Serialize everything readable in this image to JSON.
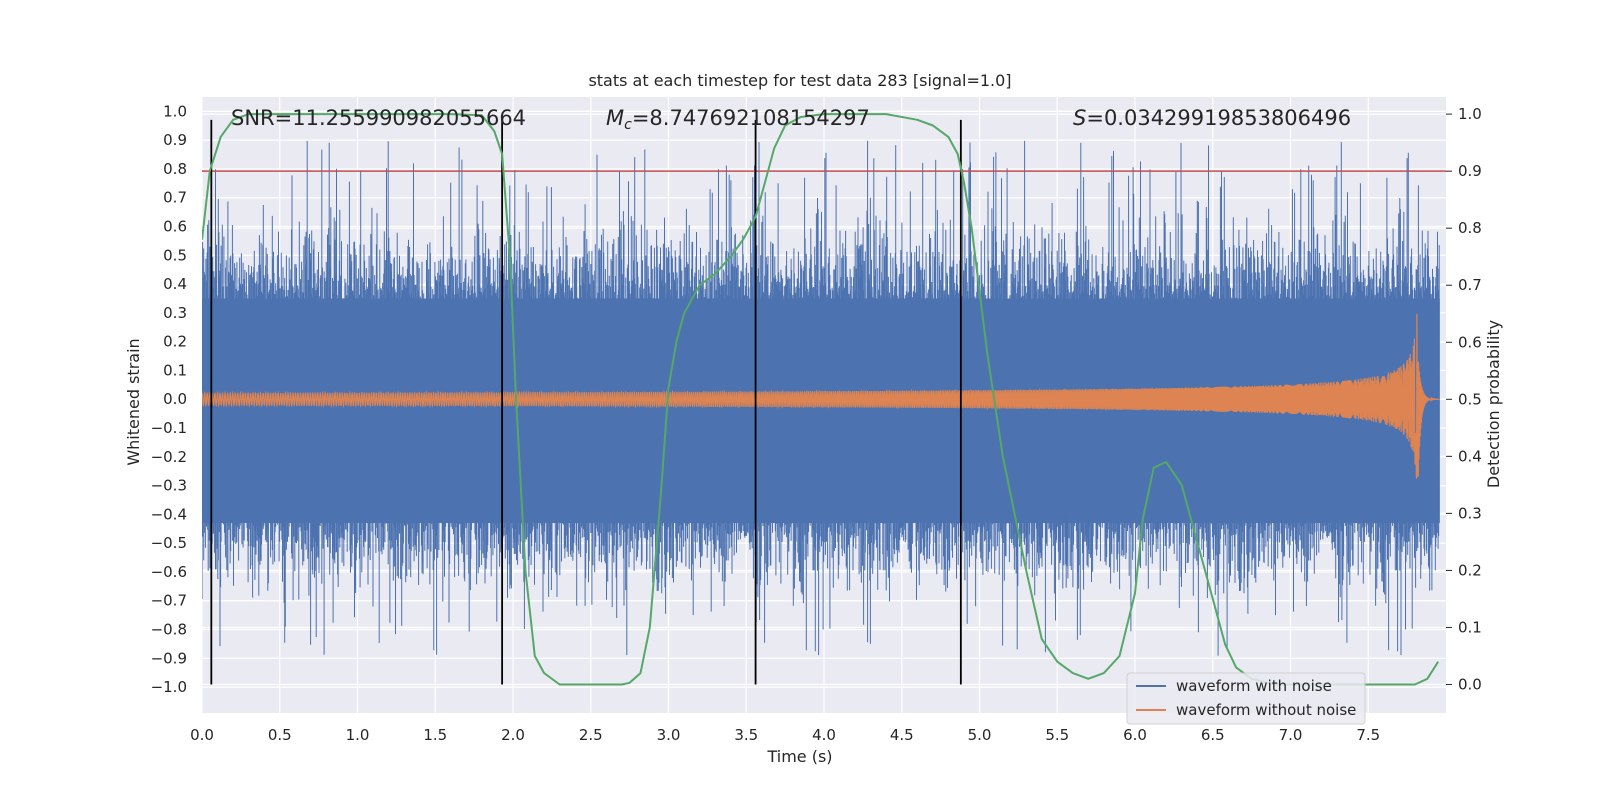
{
  "chart_data": {
    "type": "line",
    "title": "stats at each timestep for test data 283 [signal=1.0]",
    "xlabel": "Time (s)",
    "ylabel_left": "Whitened strain",
    "ylabel_right": "Detection probability",
    "xlim": [
      0.0,
      8.0
    ],
    "ylim_left": [
      -1.09,
      1.05
    ],
    "ylim_right": [
      -0.05,
      1.03
    ],
    "x_ticks": [
      "0.0",
      "0.5",
      "1.0",
      "1.5",
      "2.0",
      "2.5",
      "3.0",
      "3.5",
      "4.0",
      "4.5",
      "5.0",
      "5.5",
      "6.0",
      "6.5",
      "7.0",
      "7.5"
    ],
    "left_ticks": [
      "1.0",
      "0.9",
      "0.8",
      "0.7",
      "0.6",
      "0.5",
      "0.4",
      "0.3",
      "0.2",
      "0.1",
      "0.0",
      "−0.1",
      "−0.2",
      "−0.3",
      "−0.4",
      "−0.5",
      "−0.6",
      "−0.7",
      "−0.8",
      "−0.9",
      "−1.0"
    ],
    "right_ticks": [
      "1.0",
      "0.9",
      "0.8",
      "0.7",
      "0.6",
      "0.5",
      "0.4",
      "0.3",
      "0.2",
      "0.1",
      "0.0"
    ],
    "annotations": {
      "snr": "SNR=11.255990982055664",
      "mc_symbol": "M",
      "mc_sub": "c",
      "mc_value": "=8.747692108154297",
      "s_symbol": "S",
      "s_value": "=0.03429919853806496"
    },
    "threshold": 0.9,
    "event_lines_x": [
      0.06,
      1.93,
      3.56,
      4.88
    ],
    "detection_probability": {
      "x": [
        0.0,
        0.05,
        0.12,
        0.2,
        0.3,
        0.5,
        0.8,
        1.2,
        1.6,
        1.8,
        1.88,
        1.93,
        1.98,
        2.02,
        2.08,
        2.14,
        2.2,
        2.3,
        2.5,
        2.7,
        2.75,
        2.82,
        2.88,
        2.95,
        3.0,
        3.05,
        3.1,
        3.2,
        3.3,
        3.4,
        3.48,
        3.56,
        3.62,
        3.68,
        3.75,
        3.85,
        4.0,
        4.4,
        4.6,
        4.7,
        4.8,
        4.86,
        4.9,
        4.95,
        5.05,
        5.15,
        5.3,
        5.4,
        5.5,
        5.6,
        5.7,
        5.8,
        5.9,
        6.0,
        6.05,
        6.12,
        6.2,
        6.3,
        6.4,
        6.5,
        6.58,
        6.65,
        6.75,
        6.9,
        7.2,
        7.5,
        7.8,
        7.88,
        7.95
      ],
      "y": [
        0.78,
        0.9,
        0.96,
        0.99,
        1.0,
        1.0,
        1.0,
        1.0,
        1.0,
        0.998,
        0.97,
        0.93,
        0.75,
        0.5,
        0.2,
        0.05,
        0.02,
        0.0,
        0.0,
        0.0,
        0.003,
        0.02,
        0.1,
        0.33,
        0.52,
        0.6,
        0.65,
        0.7,
        0.72,
        0.75,
        0.78,
        0.82,
        0.88,
        0.94,
        0.98,
        0.995,
        1.0,
        1.0,
        0.99,
        0.98,
        0.96,
        0.93,
        0.88,
        0.8,
        0.58,
        0.4,
        0.2,
        0.08,
        0.04,
        0.02,
        0.01,
        0.02,
        0.05,
        0.16,
        0.29,
        0.38,
        0.39,
        0.35,
        0.25,
        0.15,
        0.07,
        0.03,
        0.01,
        0.0,
        0.0,
        0.0,
        0.0,
        0.01,
        0.04
      ]
    },
    "series": [
      {
        "name": "waveform with noise",
        "color": "#4c72b0",
        "values": "dense noise, band approx −0.45..0.45 with spikes to ±0.95"
      },
      {
        "name": "waveform without noise",
        "color": "#dd8452",
        "values": "chirp: amplitude ~0.02 growing to ~0.3 at 7.82 s then ringdown"
      },
      {
        "name": "detection probability",
        "color": "#55a868"
      },
      {
        "name": "threshold",
        "color": "#c44e52"
      }
    ],
    "legend": [
      "waveform with noise",
      "waveform without noise"
    ],
    "legend_location": "lower-right",
    "grid": true
  }
}
